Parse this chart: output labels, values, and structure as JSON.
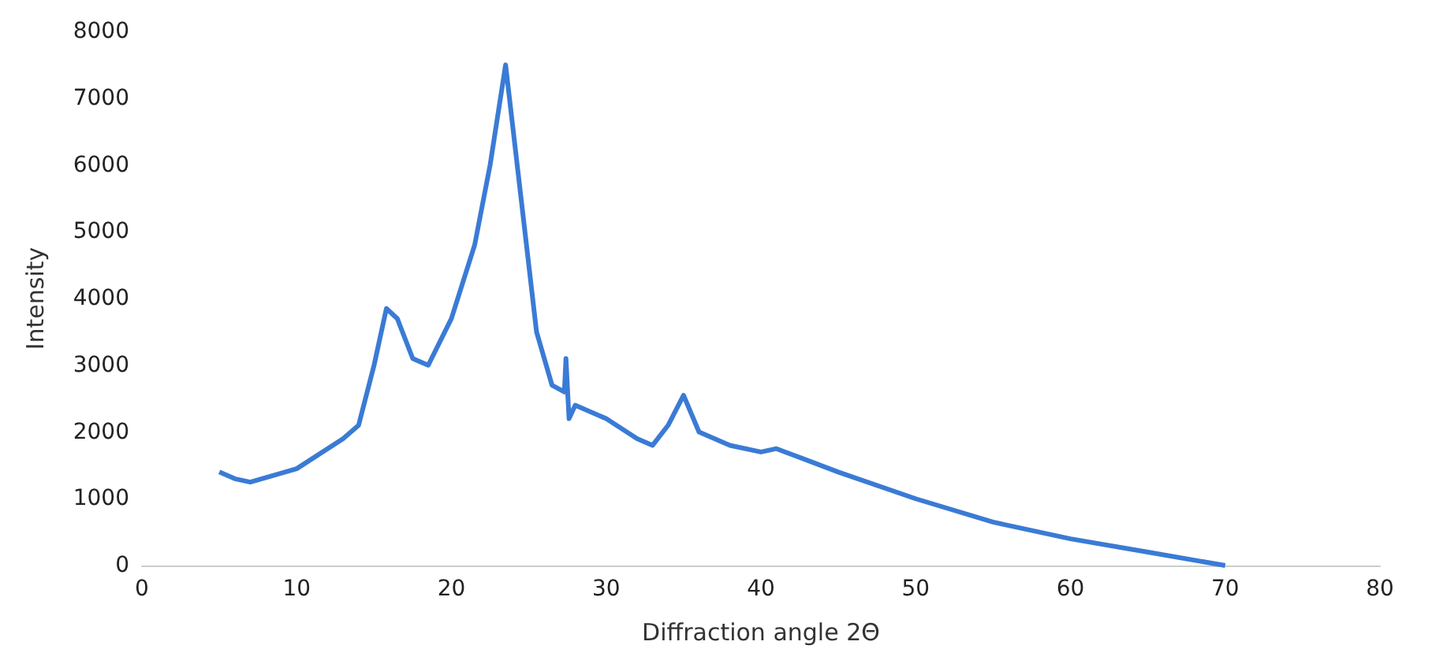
{
  "chart_data": {
    "type": "line",
    "xlabel": "Diffraction angle 2Θ",
    "ylabel": "Intensity",
    "x": [
      5,
      6,
      7,
      10,
      13,
      14,
      15,
      15.8,
      16.5,
      17.5,
      18.5,
      20,
      21.5,
      22.5,
      23.5,
      24.5,
      25.5,
      26.5,
      27.3,
      27.4,
      27.6,
      28,
      30,
      32,
      33,
      34,
      35,
      36,
      38,
      40,
      41,
      45,
      50,
      55,
      60,
      65,
      70
    ],
    "series": [
      {
        "color": "#3a7bd5",
        "values": [
          1400,
          1300,
          1250,
          1450,
          1900,
          2100,
          3000,
          3850,
          3700,
          3100,
          3000,
          3700,
          4800,
          6000,
          7500,
          5500,
          3500,
          2700,
          2600,
          3100,
          2200,
          2400,
          2200,
          1900,
          1800,
          2100,
          2550,
          2000,
          1800,
          1700,
          1750,
          1400,
          1000,
          650,
          400,
          200,
          0
        ]
      }
    ],
    "xlim": [
      0,
      80
    ],
    "xticks": [
      0,
      10,
      20,
      30,
      40,
      50,
      60,
      70,
      80
    ],
    "ylim": [
      0,
      8000
    ],
    "yticks": [
      0,
      1000,
      2000,
      3000,
      4000,
      5000,
      6000,
      7000,
      8000
    ],
    "grid": false,
    "marker": "none",
    "line_style": "solid"
  }
}
